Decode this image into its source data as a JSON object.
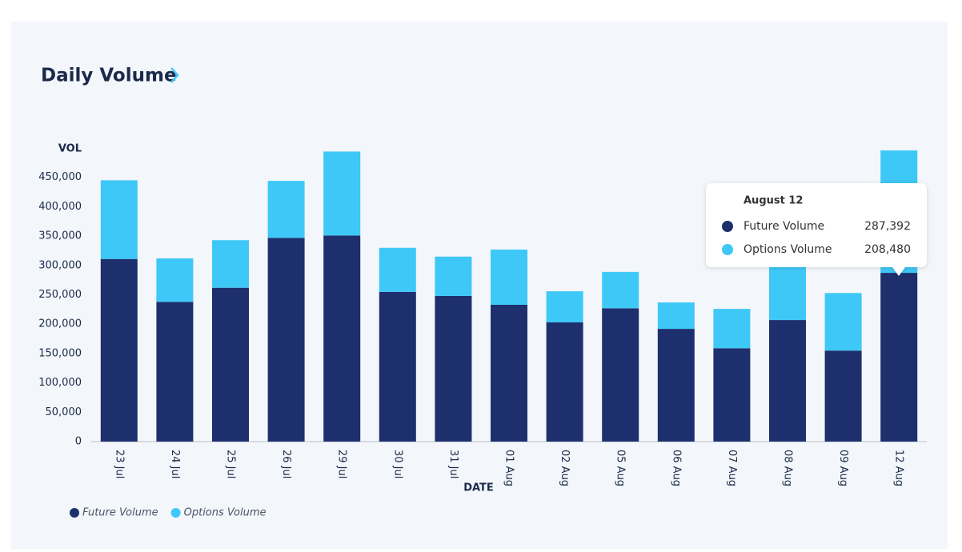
{
  "chart_data": {
    "type": "stacked_bar",
    "title": "Daily Volume",
    "y_label": "VOL",
    "x_label": "DATE",
    "categories": [
      "23 Jul",
      "24 Jul",
      "25 Jul",
      "26 Jul",
      "29 Jul",
      "30 Jul",
      "31 Jul",
      "01 Aug",
      "02 Aug",
      "05 Aug",
      "06 Aug",
      "07 Aug",
      "08 Aug",
      "09 Aug",
      "12 Aug"
    ],
    "series": [
      {
        "name": "Future Volume",
        "color": "#1e2f6e",
        "values": [
          311000,
          238000,
          262000,
          347000,
          351000,
          255000,
          248000,
          233000,
          203000,
          227000,
          192000,
          159000,
          207000,
          155000,
          287392
        ]
      },
      {
        "name": "Options Volume",
        "color": "#3ec8f7",
        "values": [
          134000,
          74000,
          81000,
          97000,
          143000,
          75000,
          67000,
          94000,
          53000,
          62000,
          45000,
          67000,
          100000,
          98000,
          208480
        ]
      }
    ],
    "ylim": [
      0,
      500000
    ],
    "yticks": [
      0,
      {
        "value": 50000,
        "label": "50,000"
      },
      {
        "value": 100000,
        "label": "100,000"
      },
      {
        "value": 150000,
        "label": "150,000"
      },
      {
        "value": 200000,
        "label": "200,000"
      },
      {
        "value": 250000,
        "label": "250,000"
      },
      {
        "value": 300000,
        "label": "300,000"
      },
      {
        "value": 350000,
        "label": "350,000"
      },
      {
        "value": 400000,
        "label": "400,000"
      },
      {
        "value": 450000,
        "label": "450,000"
      }
    ],
    "grid": false,
    "legend": "bottom-left",
    "tooltip": {
      "title": "August 12",
      "labels": [
        "287,392",
        "208,480"
      ]
    }
  }
}
